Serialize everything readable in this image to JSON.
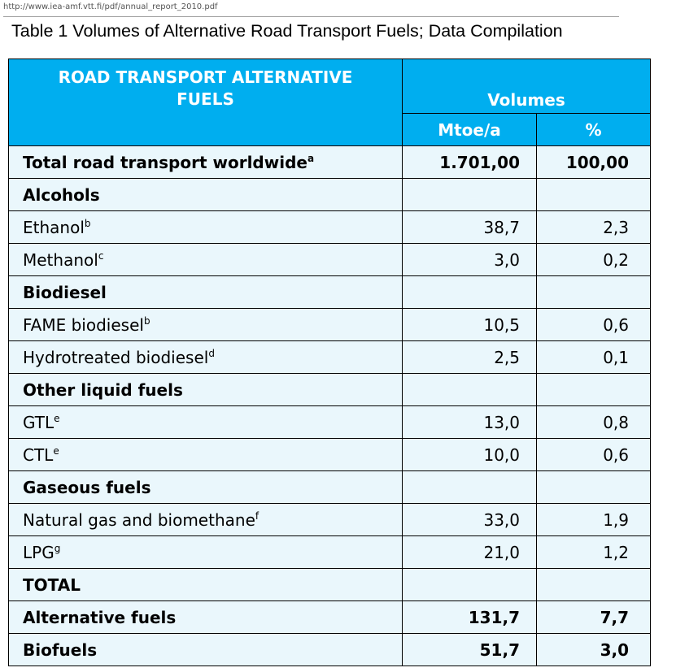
{
  "source_url": "http://www.iea-amf.vtt.fi/pdf/annual_report_2010.pdf",
  "caption": "Table 1  Volumes of Alternative Road Transport Fuels; Data Compilation",
  "header": {
    "col1_line1": "ROAD TRANSPORT ALTERNATIVE",
    "col1_line2": "FUELS",
    "volumes": "Volumes",
    "unit_mtoe": "Mtoe/a",
    "unit_pct": "%"
  },
  "rows": [
    {
      "label": "Total road transport worldwide",
      "sup": "a",
      "mtoe": "1.701,00",
      "pct": "100,00",
      "bold": true
    },
    {
      "label": "Alcohols",
      "sup": "",
      "mtoe": "",
      "pct": "",
      "bold": true
    },
    {
      "label": "Ethanol",
      "sup": "b",
      "mtoe": "38,7",
      "pct": "2,3",
      "bold": false
    },
    {
      "label": "Methanol",
      "sup": "c",
      "mtoe": "3,0",
      "pct": "0,2",
      "bold": false
    },
    {
      "label": "Biodiesel",
      "sup": "",
      "mtoe": "",
      "pct": "",
      "bold": true
    },
    {
      "label": "FAME biodiesel",
      "sup": "b",
      "mtoe": "10,5",
      "pct": "0,6",
      "bold": false
    },
    {
      "label": "Hydrotreated biodiesel",
      "sup": "d",
      "mtoe": "2,5",
      "pct": "0,1",
      "bold": false
    },
    {
      "label": "Other liquid fuels",
      "sup": "",
      "mtoe": "",
      "pct": "",
      "bold": true
    },
    {
      "label": "GTL",
      "sup": "e",
      "mtoe": "13,0",
      "pct": "0,8",
      "bold": false
    },
    {
      "label": "CTL",
      "sup": "e",
      "mtoe": "10,0",
      "pct": "0,6",
      "bold": false
    },
    {
      "label": "Gaseous fuels",
      "sup": "",
      "mtoe": "",
      "pct": "",
      "bold": true
    },
    {
      "label": "Natural gas and biomethane",
      "sup": "f",
      "mtoe": "33,0",
      "pct": "1,9",
      "bold": false
    },
    {
      "label": "LPG",
      "sup": "g",
      "mtoe": "21,0",
      "pct": "1,2",
      "bold": false
    },
    {
      "label": "TOTAL",
      "sup": "",
      "mtoe": "",
      "pct": "",
      "bold": true
    },
    {
      "label": "Alternative fuels",
      "sup": "",
      "mtoe": "131,7",
      "pct": "7,7",
      "bold": true
    },
    {
      "label": "Biofuels",
      "sup": "",
      "mtoe": "51,7",
      "pct": "3,0",
      "bold": true
    }
  ]
}
